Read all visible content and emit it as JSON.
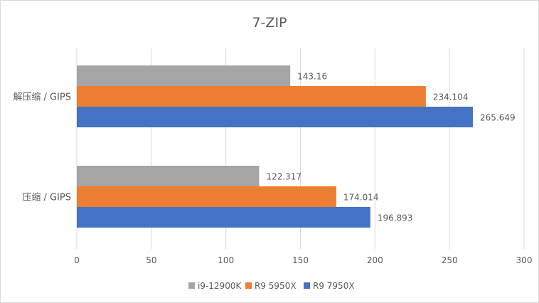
{
  "chart_data": {
    "type": "bar",
    "orientation": "horizontal",
    "title": "7-ZIP",
    "categories": [
      "解压缩 / GIPS",
      "压缩 / GIPS"
    ],
    "series": [
      {
        "name": "i9-12900K",
        "color": "#a5a5a5",
        "values": [
          143.16,
          122.317
        ],
        "labels": [
          "143.16",
          "122.317"
        ]
      },
      {
        "name": "R9 5950X",
        "color": "#ed7d31",
        "values": [
          234.104,
          174.014
        ],
        "labels": [
          "234.104",
          "174.014"
        ]
      },
      {
        "name": "R9 7950X",
        "color": "#4472c4",
        "values": [
          265.649,
          196.893
        ],
        "labels": [
          "265.649",
          "196.893"
        ]
      }
    ],
    "xlim": [
      0,
      300
    ],
    "xticks": [
      "0",
      "50",
      "100",
      "150",
      "200",
      "250",
      "300"
    ],
    "grid": true,
    "legend_position": "bottom",
    "gridline_color": "#d9d9d9"
  }
}
